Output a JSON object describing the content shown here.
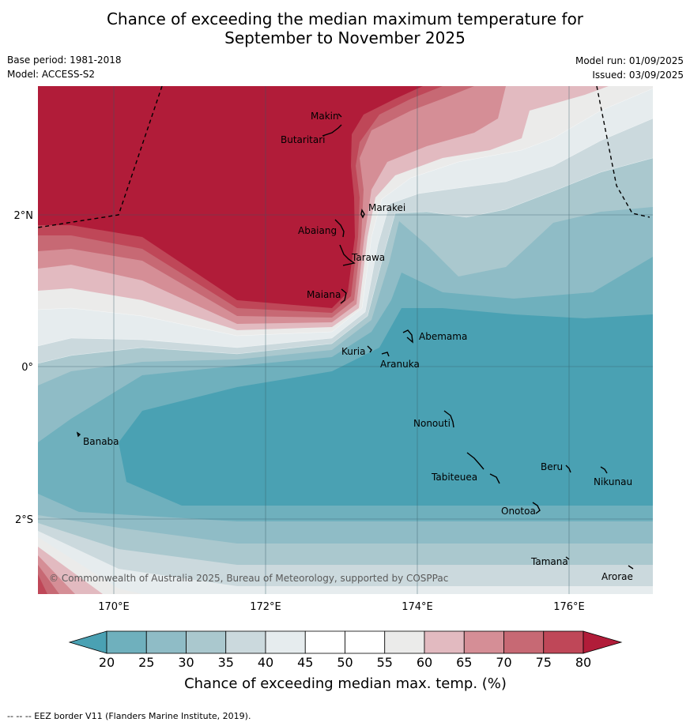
{
  "header": {
    "title_line1": "Chance of exceeding the median maximum temperature for",
    "title_line2": "September to November 2025",
    "base_period": "Base period: 1981-2018",
    "model": "Model: ACCESS-S2",
    "model_run": "Model run: 01/09/2025",
    "issued": "Issued: 03/09/2025"
  },
  "map": {
    "lon_ticks": [
      "170°E",
      "172°E",
      "174°E",
      "176°E"
    ],
    "lat_ticks": [
      "2°N",
      "0°",
      "2°S"
    ],
    "islands": [
      "Makin",
      "Butaritari",
      "Marakei",
      "Abaiang",
      "Tarawa",
      "Maiana",
      "Abemama",
      "Kuria",
      "Aranuka",
      "Banaba",
      "Nonouti",
      "Beru",
      "Tabiteuea",
      "Nikunau",
      "Onotoa",
      "Tamana",
      "Arorae"
    ],
    "copyright": "© Commonwealth of Australia 2025, Bureau of Meteorology, supported by COSPPac"
  },
  "colorbar": {
    "ticks": [
      "20",
      "25",
      "30",
      "35",
      "40",
      "45",
      "50",
      "55",
      "60",
      "65",
      "70",
      "75",
      "80"
    ],
    "label": "Chance of exceeding median max. temp. (%)",
    "colors": [
      "#4aa1b3",
      "#6fb0bd",
      "#8fbcc6",
      "#aac8ce",
      "#cbd9dd",
      "#e6ecee",
      "#ffffff",
      "#ffffff",
      "#ebebea",
      "#e2bac0",
      "#d58e96",
      "#c76974",
      "#bf4758",
      "#b11c39"
    ]
  },
  "footnote": "--  --  -- EEZ border V11 (Flanders Marine Institute, 2019)."
}
